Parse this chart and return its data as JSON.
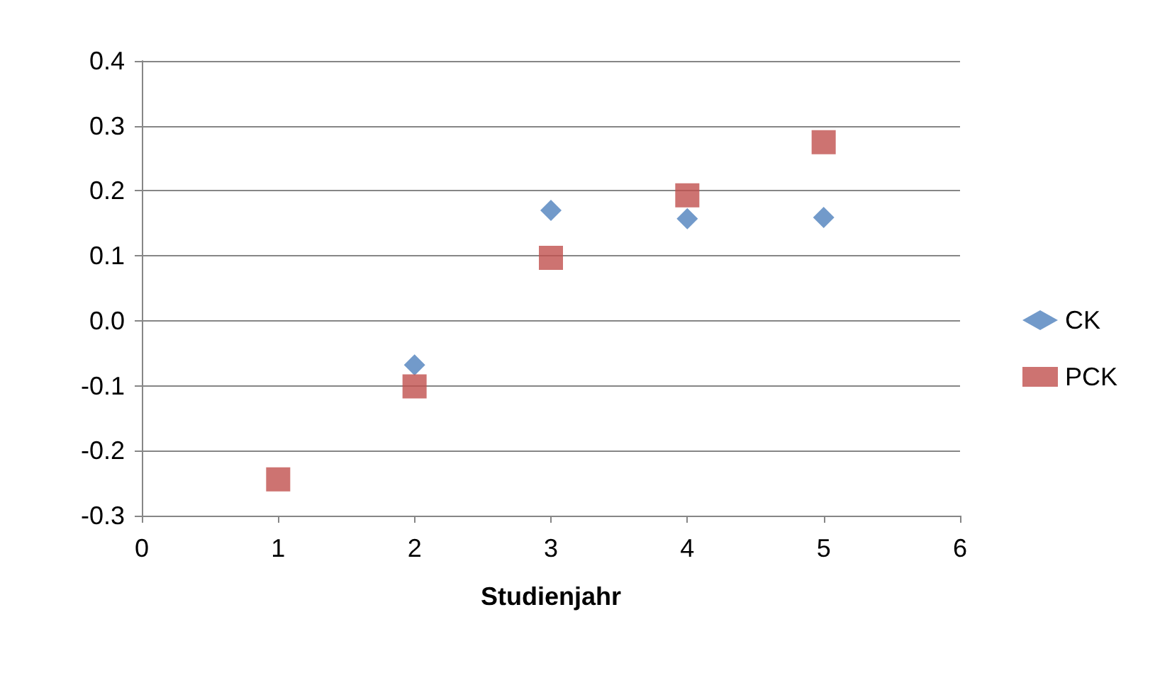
{
  "chart_data": {
    "type": "scatter",
    "xlabel": "Studienjahr",
    "x": [
      1,
      2,
      3,
      4,
      5
    ],
    "series": [
      {
        "name": "CK",
        "color": "#4f81bd",
        "marker": "diamond",
        "values": [
          null,
          -0.068,
          0.17,
          0.157,
          0.159
        ]
      },
      {
        "name": "PCK",
        "color": "#c0504d",
        "marker": "square",
        "values": [
          -0.244,
          -0.101,
          0.097,
          0.193,
          0.275
        ]
      }
    ],
    "xlim": [
      0,
      6
    ],
    "xticks": [
      0,
      1,
      2,
      3,
      4,
      5,
      6
    ],
    "ylim": [
      -0.3,
      0.4
    ],
    "yticks": [
      {
        "value": -0.3,
        "label": "-0.3"
      },
      {
        "value": -0.2,
        "label": "-0.2"
      },
      {
        "value": -0.1,
        "label": "-0.1"
      },
      {
        "value": 0,
        "label": "0.0"
      },
      {
        "value": 0.1,
        "label": "0.1"
      },
      {
        "value": 0.2,
        "label": "0.2"
      },
      {
        "value": 0.3,
        "label": "0.3"
      },
      {
        "value": 0.4,
        "label": "0.4"
      }
    ],
    "grid": "y",
    "legend": "right"
  }
}
